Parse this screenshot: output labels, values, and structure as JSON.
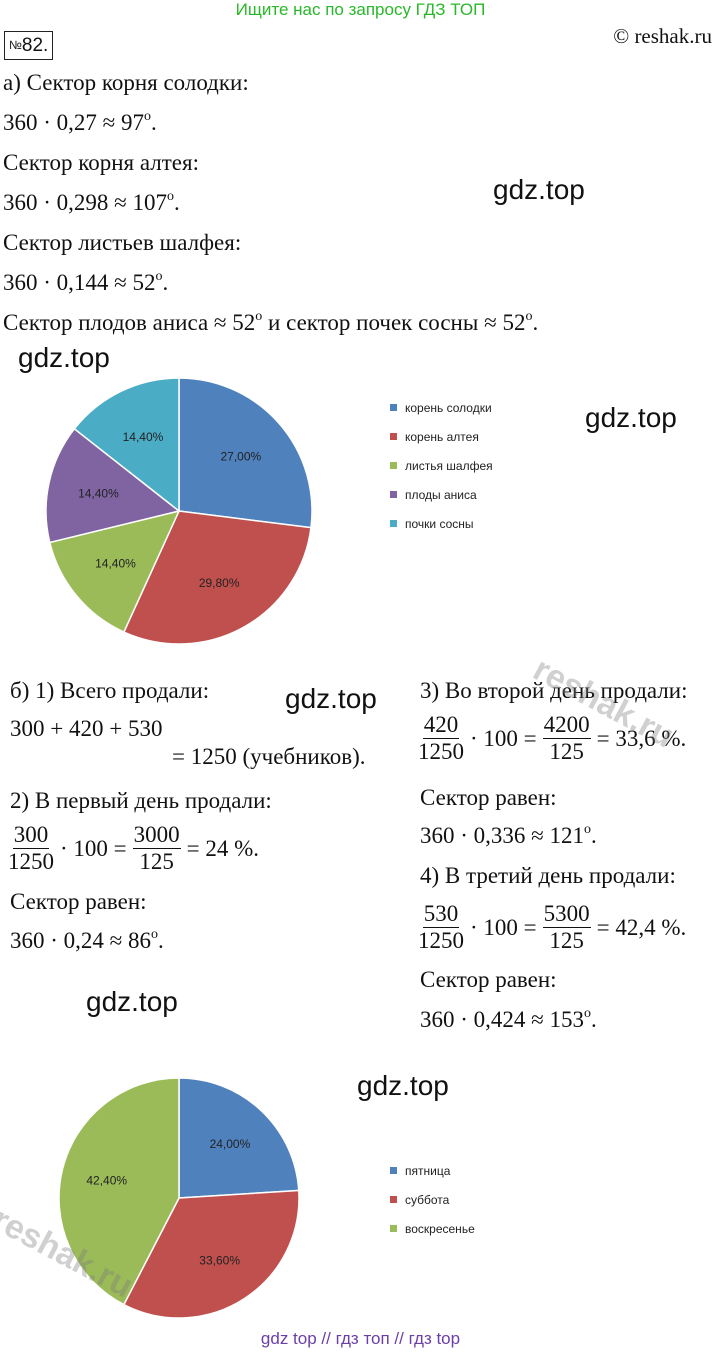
{
  "header": {
    "banner": "Ищите нас по запросу ГДЗ ТОП",
    "number_sign": "№",
    "number": "82.",
    "site": "© reshak.ru"
  },
  "part_a": {
    "l1": "а) Сектор корня солодки:",
    "l2": "360 · 0,27 ≈ 97",
    "l3": "Сектор корня алтея:",
    "l4": "360 · 0,298 ≈ 107",
    "l5": "Сектор листьев шалфея:",
    "l6": "360 · 0,144 ≈ 52",
    "l7a": "Сектор плодов аниса ≈ 52",
    "l7b": " и  сектор почек сосны ≈ 52",
    "deg": "o",
    "dot": "."
  },
  "watermarks": {
    "gdz": "gdz.top",
    "reshak": "reshak.ru"
  },
  "chart_data": [
    {
      "type": "pie",
      "series": [
        {
          "name": "корень солодки",
          "value": 27.0,
          "label": "27,00%",
          "color": "#4f81bd"
        },
        {
          "name": "корень алтея",
          "value": 29.8,
          "label": "29,80%",
          "color": "#c0504d"
        },
        {
          "name": "листья шалфея",
          "value": 14.4,
          "label": "14,40%",
          "color": "#9bbb59"
        },
        {
          "name": "плоды аниса",
          "value": 14.4,
          "label": "14,40%",
          "color": "#8064a2"
        },
        {
          "name": "почки сосны",
          "value": 14.4,
          "label": "14,40%",
          "color": "#4bacc6"
        }
      ],
      "legend": "right"
    },
    {
      "type": "pie",
      "series": [
        {
          "name": "пятница",
          "value": 24.0,
          "label": "24,00%",
          "color": "#4f81bd"
        },
        {
          "name": "суббота",
          "value": 33.6,
          "label": "33,60%",
          "color": "#c0504d"
        },
        {
          "name": "воскресенье",
          "value": 42.4,
          "label": "42,40%",
          "color": "#9bbb59"
        }
      ],
      "legend": "right"
    }
  ],
  "part_b": {
    "s1_title": "б) 1) Всего продали:",
    "s1_expr": "300 + 420 + 530",
    "s1_result": "= 1250 (учебников).",
    "s2_title": "2) В первый день продали:",
    "s2_f1n": "300",
    "s2_f1d": "1250",
    "s2_mid": "· 100 =",
    "s2_f2n": "3000",
    "s2_f2d": "125",
    "s2_res": "= 24 %.",
    "s2_sector": "Сектор равен:",
    "s2_calc": "360 · 0,24 ≈ 86",
    "s3_title": "3) Во второй день продали:",
    "s3_f1n": "420",
    "s3_f1d": "1250",
    "s3_mid": "· 100 =",
    "s3_f2n": "4200",
    "s3_f2d": "125",
    "s3_res": "= 33,6 %.",
    "s3_sector": "Сектор равен:",
    "s3_calc": "360 · 0,336 ≈ 121",
    "s4_title": "4) В третий день продали:",
    "s4_f1n": "530",
    "s4_f1d": "1250",
    "s4_mid": "· 100 =",
    "s4_f2n": "5300",
    "s4_f2d": "125",
    "s4_res": "= 42,4 %.",
    "s4_sector": "Сектор равен:",
    "s4_calc": "360 · 0,424 ≈ 153"
  },
  "footer": "gdz top  //  гдз топ  //  гдз top"
}
